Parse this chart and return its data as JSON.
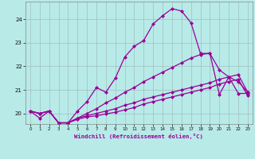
{
  "xlabel": "Windchill (Refroidissement éolien,°C)",
  "bg_color": "#b8eae8",
  "line_color": "#990099",
  "grid_color": "#9fbfbf",
  "line1": [
    20.1,
    19.8,
    20.1,
    19.6,
    19.6,
    20.1,
    20.5,
    21.1,
    20.9,
    21.5,
    22.4,
    22.85,
    23.1,
    23.8,
    24.15,
    24.45,
    24.35,
    23.85,
    22.55,
    22.55,
    20.8,
    21.55,
    20.85,
    20.85
  ],
  "line2": [
    20.1,
    20.0,
    20.1,
    19.6,
    19.6,
    19.8,
    20.0,
    20.2,
    20.45,
    20.65,
    20.9,
    21.1,
    21.35,
    21.55,
    21.75,
    21.95,
    22.15,
    22.35,
    22.5,
    22.55,
    21.85,
    21.55,
    21.35,
    20.9
  ],
  "line3": [
    20.1,
    20.0,
    20.1,
    19.6,
    19.6,
    19.8,
    19.9,
    20.0,
    20.1,
    20.2,
    20.35,
    20.45,
    20.6,
    20.7,
    20.8,
    20.9,
    21.0,
    21.1,
    21.2,
    21.3,
    21.45,
    21.55,
    21.65,
    20.9
  ],
  "line4": [
    20.1,
    20.0,
    20.1,
    19.6,
    19.6,
    19.75,
    19.85,
    19.9,
    19.98,
    20.05,
    20.15,
    20.25,
    20.4,
    20.5,
    20.6,
    20.7,
    20.8,
    20.9,
    21.0,
    21.1,
    21.25,
    21.35,
    21.45,
    20.75
  ],
  "ylim": [
    19.55,
    24.75
  ],
  "yticks": [
    20,
    21,
    22,
    23,
    24
  ],
  "xticks": [
    0,
    1,
    2,
    3,
    4,
    5,
    6,
    7,
    8,
    9,
    10,
    11,
    12,
    13,
    14,
    15,
    16,
    17,
    18,
    19,
    20,
    21,
    22,
    23
  ]
}
